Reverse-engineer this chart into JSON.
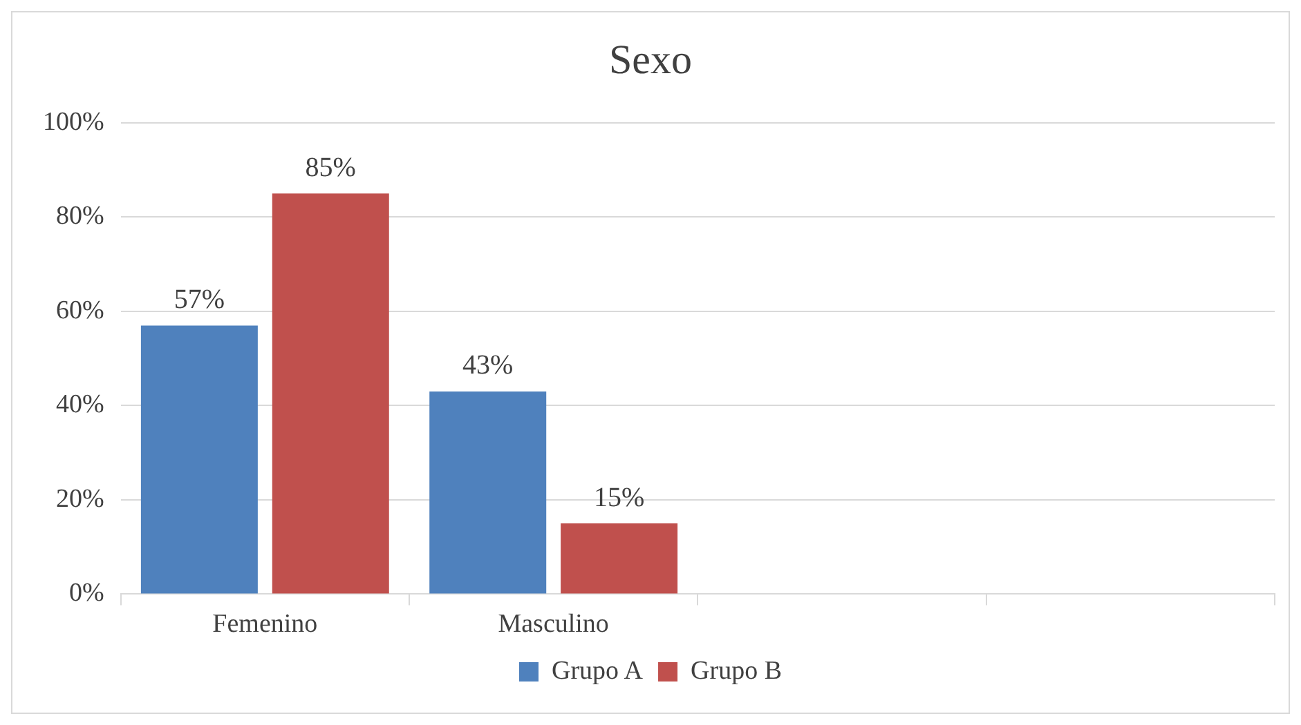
{
  "chart_data": {
    "type": "bar",
    "title": "Sexo",
    "categories": [
      "Femenino",
      "Masculino",
      null,
      null
    ],
    "series": [
      {
        "name": "Grupo A",
        "color": "#4f81bd",
        "values": [
          57,
          43,
          null,
          null
        ],
        "value_labels": [
          "57%",
          "43%",
          null,
          null
        ]
      },
      {
        "name": "Grupo B",
        "color": "#c0504d",
        "values": [
          85,
          15,
          null,
          null
        ],
        "value_labels": [
          "85%",
          "15%",
          null,
          null
        ]
      }
    ],
    "ylim": [
      0,
      100
    ],
    "yticks": [
      {
        "value": 0,
        "label": "0%"
      },
      {
        "value": 20,
        "label": "20%"
      },
      {
        "value": 40,
        "label": "40%"
      },
      {
        "value": 60,
        "label": "60%"
      },
      {
        "value": 80,
        "label": "80%"
      },
      {
        "value": 100,
        "label": "100%"
      }
    ],
    "grid": "y",
    "legend": "bottom"
  }
}
